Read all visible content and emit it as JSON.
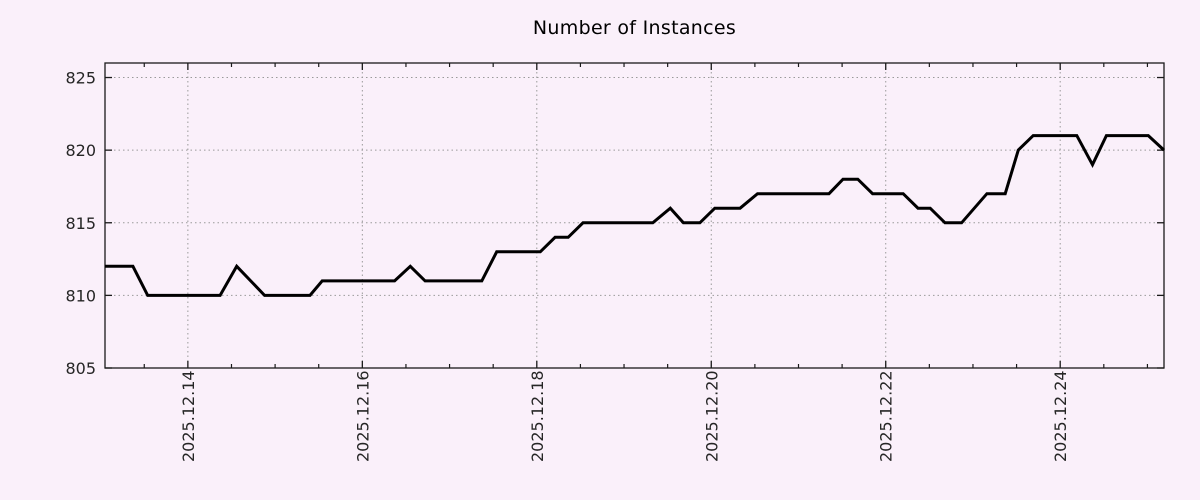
{
  "page": {
    "background": "#faf0fa"
  },
  "chart_data": {
    "type": "line",
    "title": "Number of Instances",
    "xlabel": "",
    "ylabel": "",
    "x_unit": "days since 2025-12-13 00:00",
    "xlim": [
      0.05,
      12.19
    ],
    "ylim": [
      805,
      826
    ],
    "y_ticks": [
      805,
      810,
      815,
      820,
      825
    ],
    "x_ticks": [
      {
        "pos": 1,
        "label": "2025.12.14"
      },
      {
        "pos": 3,
        "label": "2025.12.16"
      },
      {
        "pos": 5,
        "label": "2025.12.18"
      },
      {
        "pos": 7,
        "label": "2025.12.20"
      },
      {
        "pos": 9,
        "label": "2025.12.22"
      },
      {
        "pos": 11,
        "label": "2025.12.24"
      }
    ],
    "x_minor_tick_step": 0.5,
    "grid": "dotted",
    "legend": "none",
    "colors": {
      "background": "#faf0fa",
      "grid": "#9a9a9a",
      "axis": "#1a1a1a",
      "text": "#262626",
      "line": "#000000"
    },
    "series": [
      {
        "name": "instances",
        "color": "#000000",
        "points": [
          [
            0.05,
            812
          ],
          [
            0.37,
            812
          ],
          [
            0.54,
            810
          ],
          [
            1.37,
            810
          ],
          [
            1.56,
            812
          ],
          [
            1.88,
            810
          ],
          [
            2.4,
            810
          ],
          [
            2.54,
            811
          ],
          [
            3.37,
            811
          ],
          [
            3.55,
            812
          ],
          [
            3.72,
            811
          ],
          [
            4.37,
            811
          ],
          [
            4.54,
            813
          ],
          [
            5.04,
            813
          ],
          [
            5.21,
            814
          ],
          [
            5.36,
            814
          ],
          [
            5.53,
            815
          ],
          [
            6.33,
            815
          ],
          [
            6.53,
            816
          ],
          [
            6.68,
            815
          ],
          [
            6.87,
            815
          ],
          [
            7.04,
            816
          ],
          [
            7.33,
            816
          ],
          [
            7.53,
            817
          ],
          [
            8.35,
            817
          ],
          [
            8.51,
            818
          ],
          [
            8.68,
            818
          ],
          [
            8.85,
            817
          ],
          [
            9.2,
            817
          ],
          [
            9.37,
            816
          ],
          [
            9.51,
            816
          ],
          [
            9.68,
            815
          ],
          [
            9.87,
            815
          ],
          [
            10.16,
            817
          ],
          [
            10.37,
            817
          ],
          [
            10.52,
            820
          ],
          [
            10.69,
            821
          ],
          [
            11.19,
            821
          ],
          [
            11.37,
            819
          ],
          [
            11.53,
            821
          ],
          [
            12.01,
            821
          ],
          [
            12.19,
            820
          ]
        ]
      }
    ]
  }
}
